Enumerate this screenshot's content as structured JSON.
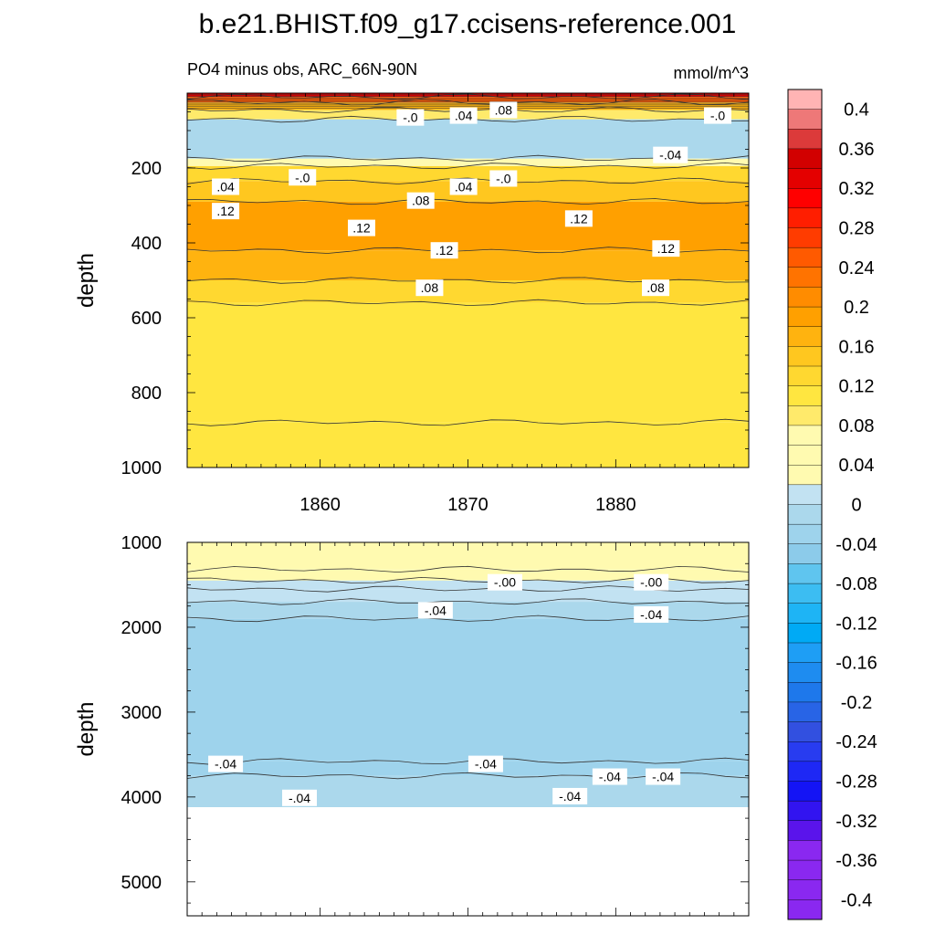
{
  "title": "b.e21.BHIST.f09_g17.ccisens-reference.001",
  "subtitle_left": "PO4 minus obs, ARC_66N-90N",
  "subtitle_right": "mmol/m^3",
  "colors": {
    "positive_ramp": [
      "#fffab0",
      "#ffea6b",
      "#ffe640",
      "#ffd830",
      "#ffc71f",
      "#ffb30f",
      "#ffa000",
      "#ff8c00",
      "#ff7300",
      "#ff5a00",
      "#ff3c00",
      "#ff1e00",
      "#ff0000",
      "#e40000",
      "#d20000",
      "#dc3a3a",
      "#ee7878",
      "#ffb4b4"
    ],
    "negative_ramp": [
      "#c2e2f2",
      "#abd8ec",
      "#9ed3ec",
      "#8ccbea",
      "#5fc5ef",
      "#3cbdf2",
      "#1eb4f5",
      "#00aaf5",
      "#1e9ef5",
      "#1e8cf0",
      "#1e78eb",
      "#2864e6",
      "#3250e0",
      "#283cf0",
      "#1e28f5",
      "#1414f5",
      "#3214f0",
      "#5a14eb",
      "#8a28f0"
    ]
  },
  "chart_data": [
    {
      "type": "heatmap",
      "panel": "upper",
      "ylabel": "depth",
      "x_range": [
        1851,
        1889
      ],
      "xticks": [
        1860,
        1870,
        1880
      ],
      "ylim": [
        1000,
        0
      ],
      "yticks": [
        200,
        400,
        600,
        800,
        1000
      ],
      "layers": [
        {
          "depth_top": 0,
          "depth_bottom": 10,
          "value": 0.26
        },
        {
          "depth_top": 10,
          "depth_bottom": 25,
          "value": 0.18
        },
        {
          "depth_top": 25,
          "depth_bottom": 45,
          "value": 0.1
        },
        {
          "depth_top": 45,
          "depth_bottom": 70,
          "value": 0.03
        },
        {
          "depth_top": 70,
          "depth_bottom": 175,
          "value": -0.03
        },
        {
          "depth_top": 175,
          "depth_bottom": 195,
          "value": 0.01
        },
        {
          "depth_top": 195,
          "depth_bottom": 235,
          "value": 0.06
        },
        {
          "depth_top": 235,
          "depth_bottom": 290,
          "value": 0.09
        },
        {
          "depth_top": 290,
          "depth_bottom": 420,
          "value": 0.13
        },
        {
          "depth_top": 420,
          "depth_bottom": 500,
          "value": 0.1
        },
        {
          "depth_top": 500,
          "depth_bottom": 560,
          "value": 0.07
        },
        {
          "depth_top": 560,
          "depth_bottom": 880,
          "value": 0.05
        },
        {
          "depth_top": 880,
          "depth_bottom": 1000,
          "value": 0.04
        }
      ],
      "contour_labels": [
        {
          "text": "-.0",
          "x": 1866.1,
          "depth": 65
        },
        {
          "text": ".04",
          "x": 1869.7,
          "depth": 60
        },
        {
          "text": ".08",
          "x": 1872.4,
          "depth": 45
        },
        {
          "text": "-.0",
          "x": 1886.9,
          "depth": 60
        },
        {
          "text": "-.04",
          "x": 1883.7,
          "depth": 165
        },
        {
          "text": "-.0",
          "x": 1858.8,
          "depth": 225
        },
        {
          "text": "-.0",
          "x": 1872.4,
          "depth": 228
        },
        {
          "text": ".04",
          "x": 1853.6,
          "depth": 250
        },
        {
          "text": ".04",
          "x": 1869.7,
          "depth": 250
        },
        {
          "text": ".08",
          "x": 1866.8,
          "depth": 287
        },
        {
          "text": ".12",
          "x": 1853.6,
          "depth": 315
        },
        {
          "text": ".12",
          "x": 1877.5,
          "depth": 335
        },
        {
          "text": ".12",
          "x": 1862.8,
          "depth": 360
        },
        {
          "text": ".12",
          "x": 1868.4,
          "depth": 420
        },
        {
          "text": ".12",
          "x": 1883.4,
          "depth": 415
        },
        {
          "text": ".08",
          "x": 1867.4,
          "depth": 520
        },
        {
          "text": ".08",
          "x": 1882.7,
          "depth": 520
        }
      ]
    },
    {
      "type": "heatmap",
      "panel": "lower",
      "ylabel": "depth",
      "x_range": [
        1851,
        1889
      ],
      "ylim": [
        5400,
        1000
      ],
      "yticks": [
        1000,
        2000,
        3000,
        4000,
        5000
      ],
      "layers": [
        {
          "depth_top": 1000,
          "depth_bottom": 1320,
          "value": 0.01
        },
        {
          "depth_top": 1320,
          "depth_bottom": 1450,
          "value": 0.002
        },
        {
          "depth_top": 1450,
          "depth_bottom": 1550,
          "value": -0.01
        },
        {
          "depth_top": 1550,
          "depth_bottom": 1700,
          "value": -0.02
        },
        {
          "depth_top": 1700,
          "depth_bottom": 1900,
          "value": -0.035
        },
        {
          "depth_top": 1900,
          "depth_bottom": 3580,
          "value": -0.05
        },
        {
          "depth_top": 3580,
          "depth_bottom": 3750,
          "value": -0.045
        },
        {
          "depth_top": 3750,
          "depth_bottom": 4120,
          "value": -0.04
        }
      ],
      "no_data_below": 4120,
      "contour_labels": [
        {
          "text": "-.00",
          "x": 1872.5,
          "depth": 1470
        },
        {
          "text": "-.00",
          "x": 1882.4,
          "depth": 1470
        },
        {
          "text": "-.04",
          "x": 1867.8,
          "depth": 1800
        },
        {
          "text": "-.04",
          "x": 1882.4,
          "depth": 1850
        },
        {
          "text": "-.04",
          "x": 1853.6,
          "depth": 3610
        },
        {
          "text": "-.04",
          "x": 1871.2,
          "depth": 3610
        },
        {
          "text": "-.04",
          "x": 1879.6,
          "depth": 3760
        },
        {
          "text": "-.04",
          "x": 1883.2,
          "depth": 3760
        },
        {
          "text": "-.04",
          "x": 1858.6,
          "depth": 4010
        },
        {
          "text": "-.04",
          "x": 1876.9,
          "depth": 3990
        }
      ]
    },
    {
      "type": "colorbar",
      "min": -0.4,
      "max": 0.4,
      "step": 0.02,
      "labels": [
        "0.4",
        "0.36",
        "0.32",
        "0.28",
        "0.24",
        "0.2",
        "0.16",
        "0.12",
        "0.08",
        "0.04",
        "0",
        "-0.04",
        "-0.08",
        "-0.12",
        "-0.16",
        "-0.2",
        "-0.24",
        "-0.28",
        "-0.32",
        "-0.36",
        "-0.4"
      ]
    }
  ]
}
